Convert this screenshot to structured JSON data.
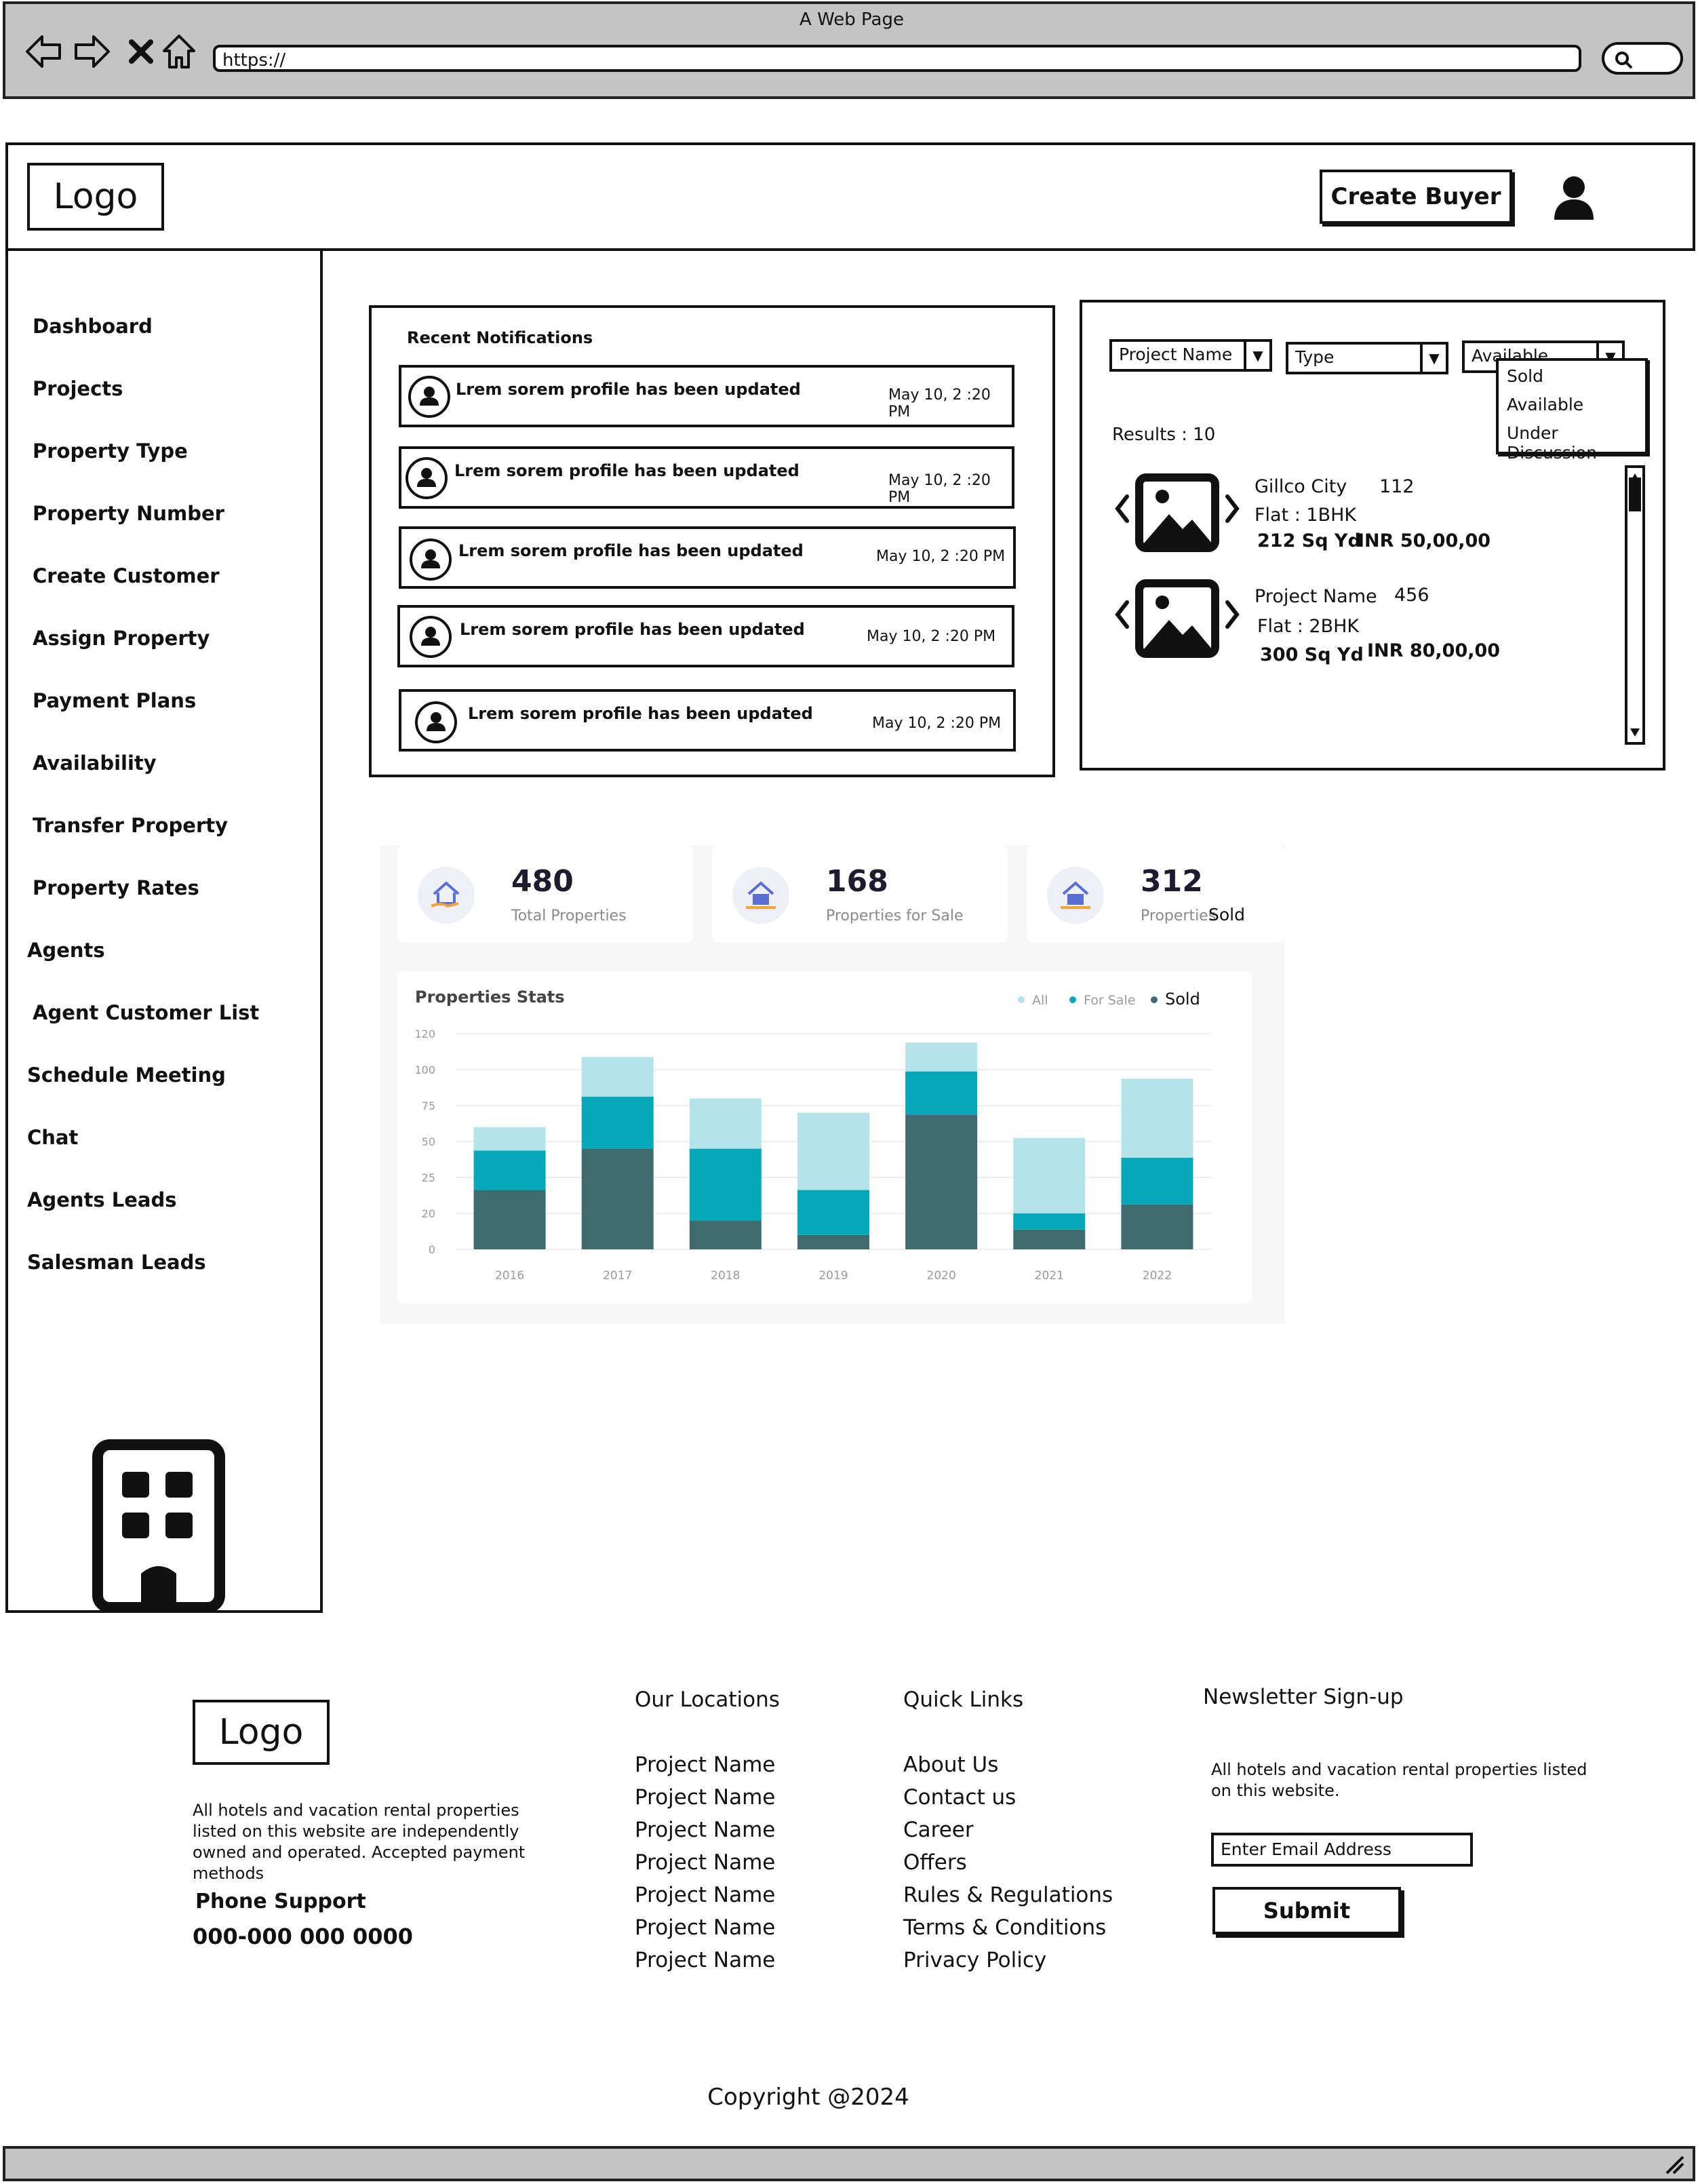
{
  "browser": {
    "window_title": "A Web Page",
    "url": "https://"
  },
  "header": {
    "logo": "Logo",
    "create_buyer_label": "Create Buyer"
  },
  "sidebar": {
    "items": [
      {
        "label": "Dashboard"
      },
      {
        "label": "Projects"
      },
      {
        "label": "Property Type"
      },
      {
        "label": "Property Number"
      },
      {
        "label": "Create Customer"
      },
      {
        "label": "Assign Property"
      },
      {
        "label": "Payment Plans"
      },
      {
        "label": "Availability"
      },
      {
        "label": "Transfer Property"
      },
      {
        "label": "Property Rates"
      },
      {
        "label": "Agents"
      },
      {
        "label": "Agent Customer List"
      },
      {
        "label": "Schedule Meeting"
      },
      {
        "label": "Chat"
      },
      {
        "label": "Agents Leads"
      },
      {
        "label": "Salesman Leads"
      }
    ],
    "bottom_icon": "building-icon"
  },
  "notifications": {
    "title": "Recent Notifications",
    "items": [
      {
        "text": "Lrem sorem profile has been updated",
        "time": "May 10, 2 :20 PM"
      },
      {
        "text": "Lrem sorem profile has been updated",
        "time": "May 10, 2 :20 PM"
      },
      {
        "text": "Lrem sorem profile has been updated",
        "time": "May 10, 2 :20 PM"
      },
      {
        "text": "Lrem sorem profile has been updated",
        "time": "May 10, 2 :20 PM"
      },
      {
        "text": "Lrem sorem profile has been updated",
        "time": "May 10, 2 :20 PM"
      }
    ]
  },
  "search": {
    "filters": {
      "project": "Project Name",
      "type": "Type",
      "availability": "Available"
    },
    "availability_options": [
      "Sold",
      "Available",
      "Under Discussion"
    ],
    "results_label": "Results : 10",
    "results": [
      {
        "name": "Gillco City",
        "number": "112",
        "flat": "Flat : 1BHK",
        "area": "212 Sq Yd",
        "price": "INR 50,00,00"
      },
      {
        "name": "Project Name",
        "number": "456",
        "flat": "Flat : 2BHK",
        "area": "300 Sq Yd",
        "price": "INR 80,00,00"
      }
    ]
  },
  "stats": {
    "cards": [
      {
        "value": "480",
        "label": "Total Properties"
      },
      {
        "value": "168",
        "label": "Properties for Sale"
      },
      {
        "value": "312",
        "label": "Properties",
        "extra": "Sold"
      }
    ]
  },
  "chart_data": {
    "type": "bar",
    "stacked": true,
    "title": "Properties Stats",
    "legend_position": "top-right",
    "categories": [
      "2016",
      "2017",
      "2018",
      "2019",
      "2020",
      "2021",
      "2022"
    ],
    "y_ticks": [
      "120",
      "100",
      "75",
      "50",
      "25",
      "20",
      "0"
    ],
    "ylim": [
      0,
      120
    ],
    "series": [
      {
        "name": "Sold",
        "color": "#3d6b6e",
        "values": [
          33,
          56,
          16,
          8,
          75,
          11,
          25
        ]
      },
      {
        "name": "For Sale",
        "color": "#05a8b8",
        "values": [
          22,
          29,
          40,
          25,
          24,
          9,
          26
        ]
      },
      {
        "name": "All",
        "color": "#b3e4ea",
        "values": [
          13,
          22,
          28,
          43,
          16,
          42,
          44
        ]
      }
    ]
  },
  "footer": {
    "logo": "Logo",
    "description": "All hotels and vacation rental properties listed on this website are independently owned and operated. Accepted payment methods",
    "phone_label": "Phone Support",
    "phone": "000-000 000 0000",
    "locations_title": "Our Locations",
    "locations": [
      "Project Name",
      "Project Name",
      "Project Name",
      "Project Name",
      "Project Name",
      "Project Name",
      "Project Name"
    ],
    "quick_links_title": "Quick Links",
    "quick_links": [
      "About Us",
      "Contact us",
      "Career",
      "Offers",
      "Rules & Regulations",
      "Terms & Conditions",
      "Privacy Policy"
    ],
    "newsletter_title": "Newsletter Sign-up",
    "newsletter_text": "All hotels and vacation rental properties listed on this website.",
    "email_placeholder": "Enter Email Address",
    "submit_label": "Submit",
    "copyright": "Copyright @2024"
  }
}
